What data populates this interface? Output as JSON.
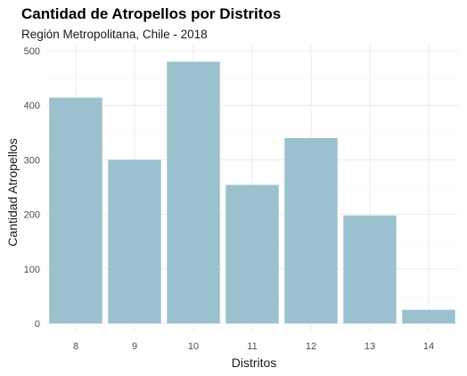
{
  "chart_data": {
    "type": "bar",
    "title": "Cantidad de Atropellos por Distritos",
    "subtitle": "Región Metropolitana, Chile - 2018",
    "xlabel": "Distritos",
    "ylabel": "Cantidad Atropellos",
    "categories": [
      "8",
      "9",
      "10",
      "11",
      "12",
      "13",
      "14"
    ],
    "values": [
      414,
      300,
      480,
      254,
      340,
      198,
      25
    ],
    "ylim": [
      0,
      500
    ],
    "yticks": [
      0,
      100,
      200,
      300,
      400,
      500
    ],
    "grid": true,
    "legend": "none",
    "colors": {
      "bar": "#9bc0ce",
      "grid_major": "#ebebeb",
      "grid_minor": "#f5f5f5"
    }
  }
}
